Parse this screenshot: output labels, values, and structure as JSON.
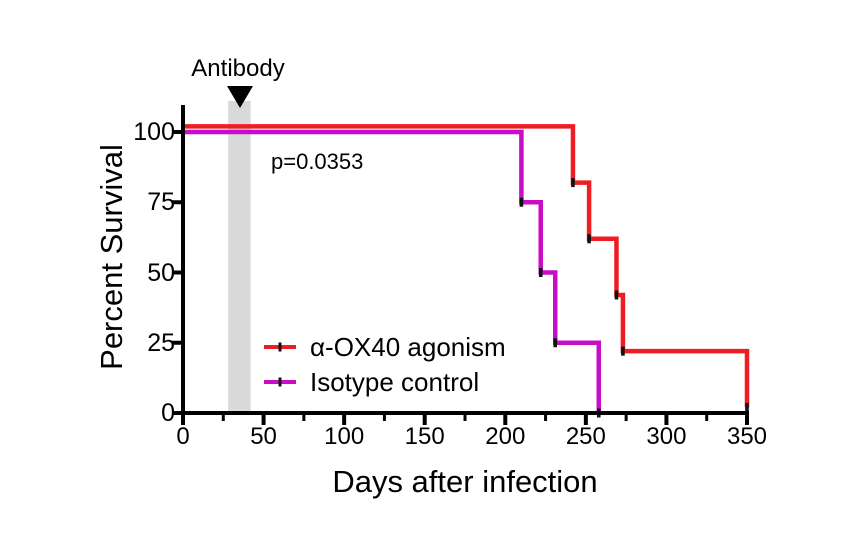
{
  "chart_data": {
    "type": "line",
    "subtype": "kaplan_meier_survival_step",
    "title": "",
    "xlabel": "Days after infection",
    "ylabel": "Percent Survival",
    "xlim": [
      0,
      350
    ],
    "ylim": [
      0,
      100
    ],
    "x_major_ticks": [
      0,
      50,
      100,
      150,
      200,
      250,
      300,
      350
    ],
    "x_minor_ticks": [
      25,
      75,
      125,
      175,
      225,
      275,
      325
    ],
    "y_ticks": [
      0,
      25,
      50,
      75,
      100
    ],
    "grid": false,
    "legend_position": "inside-lower-left",
    "axis_color": "#000000",
    "event_tick_color": "#111111",
    "series": [
      {
        "name": "α-OX40 agonism",
        "color": "#ee1c23",
        "display_offset_pct": 2,
        "start_pct": 100,
        "events": [
          {
            "day": 242,
            "survival_pct_after": 80
          },
          {
            "day": 252,
            "survival_pct_after": 60
          },
          {
            "day": 269,
            "survival_pct_after": 40
          },
          {
            "day": 273,
            "survival_pct_after": 20
          },
          {
            "day": 350,
            "survival_pct_after": 0
          }
        ]
      },
      {
        "name": "Isotype control",
        "color": "#c80cc8",
        "display_offset_pct": 0,
        "start_pct": 100,
        "events": [
          {
            "day": 210,
            "survival_pct_after": 75
          },
          {
            "day": 222,
            "survival_pct_after": 50
          },
          {
            "day": 231,
            "survival_pct_after": 25
          },
          {
            "day": 258,
            "survival_pct_after": 0
          }
        ]
      }
    ],
    "annotations": {
      "p_value_text": "p=0.0353",
      "treatment_label": "Antibody",
      "treatment_marker": "black-down-triangle",
      "treatment_band_days": [
        28,
        42
      ],
      "treatment_band_color": "#d3d3d3"
    }
  }
}
